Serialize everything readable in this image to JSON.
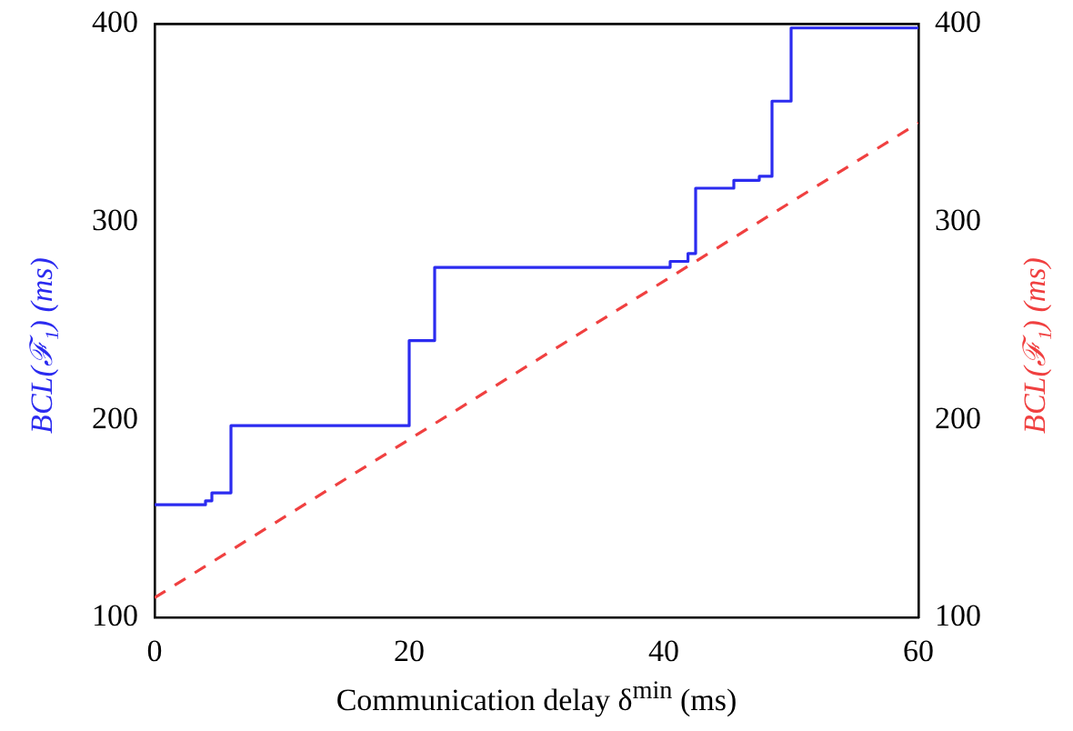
{
  "chart_data": {
    "type": "step",
    "xlabel": "Communication delay δ$^{min}$ (ms)",
    "ylabel": "BCL(ℱ₁) (ms)",
    "y2label": "BCL(ℱ₁) (ms)",
    "xlim": [
      0,
      60
    ],
    "xticks": [
      0,
      20,
      40,
      60
    ],
    "ylim": [
      100,
      400
    ],
    "yticks": [
      100,
      200,
      300,
      400
    ],
    "y2lim": [
      100,
      400
    ],
    "y2ticks": [
      100,
      200,
      300,
      400
    ],
    "grid": false,
    "legend": false,
    "series": [
      {
        "color": "#2b2bf0",
        "x": [
          0,
          4,
          4.5,
          6,
          20,
          22,
          40.5,
          41.9,
          42.5,
          45.5,
          47.5,
          48.5,
          50,
          60
        ],
        "values": [
          157,
          159,
          163,
          197,
          240,
          277,
          280,
          284,
          317,
          321,
          323,
          361,
          398,
          398
        ]
      },
      {
        "type": "line",
        "axis": "y2",
        "line_style": "dashed",
        "color": "#f04040",
        "x": [
          0,
          60
        ],
        "values": [
          110,
          350
        ]
      }
    ]
  }
}
